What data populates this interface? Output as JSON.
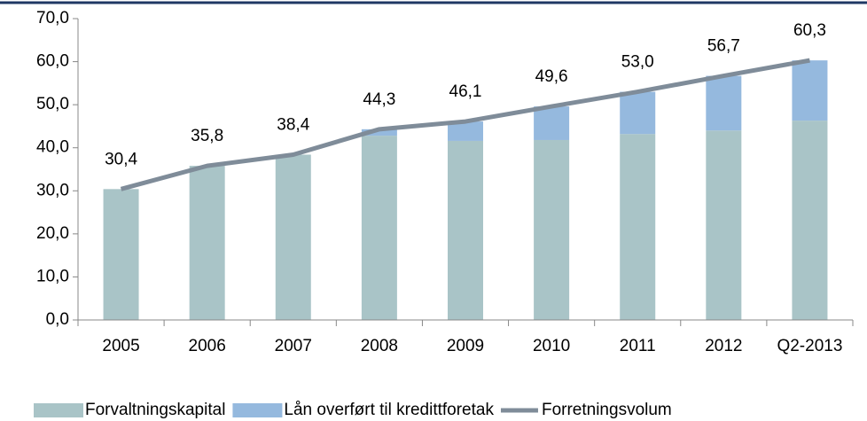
{
  "chart_data": {
    "type": "bar",
    "stacked": true,
    "categories": [
      "2005",
      "2006",
      "2007",
      "2008",
      "2009",
      "2010",
      "2011",
      "2012",
      "Q2-2013"
    ],
    "series": [
      {
        "name": "Forvaltningskapital",
        "type": "bar",
        "color": "#a9c4c7",
        "values": [
          30.4,
          35.8,
          38.4,
          42.8,
          41.6,
          41.8,
          43.2,
          44.0,
          46.3
        ]
      },
      {
        "name": "Lån overført til kredittforetak",
        "type": "bar",
        "color": "#95b9de",
        "values": [
          0,
          0,
          0,
          1.5,
          4.5,
          7.8,
          9.8,
          12.7,
          14.0
        ]
      },
      {
        "name": "Forretningsvolum",
        "type": "line",
        "color": "#7f8c99",
        "values": [
          30.4,
          35.8,
          38.4,
          44.3,
          46.1,
          49.6,
          53.0,
          56.7,
          60.3
        ],
        "value_labels": [
          "30,4",
          "35,8",
          "38,4",
          "44,3",
          "46,1",
          "49,6",
          "53,0",
          "56,7",
          "60,3"
        ]
      }
    ],
    "ylim": [
      0,
      70
    ],
    "yticks": [
      {
        "value": 0,
        "label": "0,0"
      },
      {
        "value": 10,
        "label": "10,0"
      },
      {
        "value": 20,
        "label": "20,0"
      },
      {
        "value": 30,
        "label": "30,0"
      },
      {
        "value": 40,
        "label": "40,0"
      },
      {
        "value": 50,
        "label": "50,0"
      },
      {
        "value": 60,
        "label": "60,0"
      },
      {
        "value": 70,
        "label": "70,0"
      }
    ],
    "legend": "bottom"
  }
}
